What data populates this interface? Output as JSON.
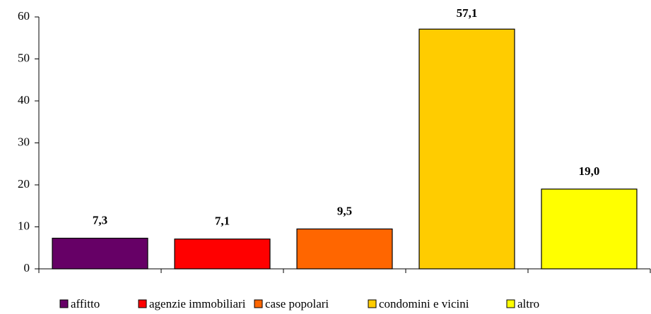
{
  "chart_data": {
    "type": "bar",
    "series": [
      {
        "name": "affitto",
        "color": "#660066",
        "values": [
          7.3
        ],
        "value_labels": [
          "7,3"
        ]
      },
      {
        "name": "agenzie immobiliari",
        "color": "#ff0000",
        "values": [
          7.1
        ],
        "value_labels": [
          "7,1"
        ]
      },
      {
        "name": "case popolari",
        "color": "#ff6600",
        "values": [
          9.5
        ],
        "value_labels": [
          "9,5"
        ]
      },
      {
        "name": "condomini e vicini",
        "color": "#ffcc00",
        "values": [
          57.1
        ],
        "value_labels": [
          "57,1"
        ]
      },
      {
        "name": "altro",
        "color": "#ffff00",
        "values": [
          19.0
        ],
        "value_labels": [
          "19,0"
        ]
      }
    ],
    "ylim": [
      0,
      60
    ],
    "yticks": [
      0,
      10,
      20,
      30,
      40,
      50,
      60
    ],
    "grid": false,
    "legend": "bottom"
  }
}
